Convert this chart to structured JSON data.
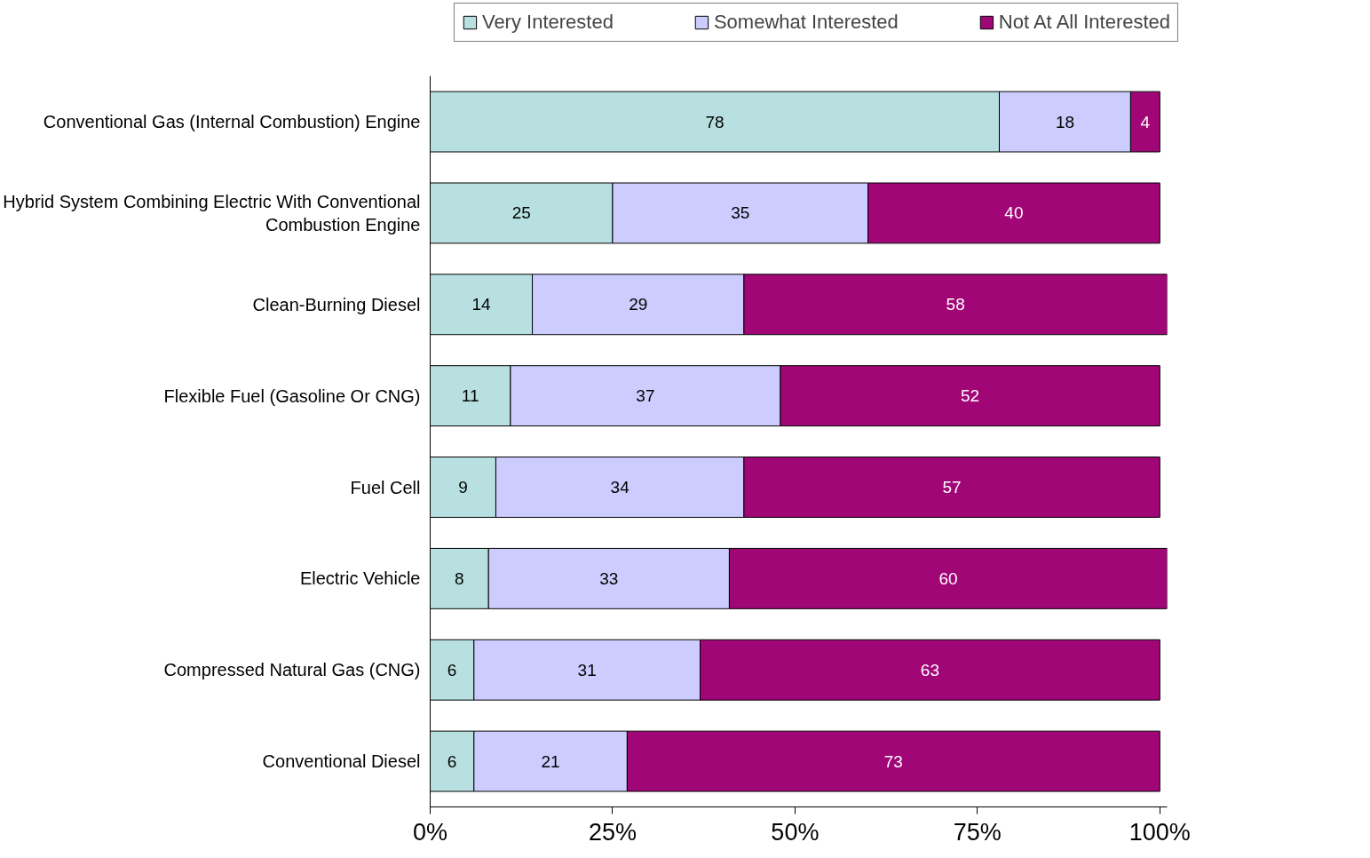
{
  "chart_data": {
    "type": "bar",
    "orientation": "horizontal",
    "stacked": true,
    "categories": [
      "Conventional Gas (Internal Combustion) Engine",
      "Hybrid System Combining Electric With Conventional Combustion Engine",
      "Clean-Burning Diesel",
      "Flexible Fuel (Gasoline Or CNG)",
      "Fuel Cell",
      "Electric Vehicle",
      "Compressed Natural Gas (CNG)",
      "Conventional Diesel"
    ],
    "series": [
      {
        "name": "Very Interested",
        "color": "#b8e0e0",
        "values": [
          78,
          25,
          14,
          11,
          9,
          8,
          6,
          6
        ]
      },
      {
        "name": "Somewhat Interested",
        "color": "#ccccff",
        "values": [
          18,
          35,
          29,
          37,
          34,
          33,
          31,
          21
        ]
      },
      {
        "name": "Not At All Interested",
        "color": "#a10677",
        "values": [
          4,
          40,
          58,
          52,
          57,
          60,
          63,
          73
        ]
      }
    ],
    "xlim": [
      0,
      101
    ],
    "xticks": [
      {
        "value": 0,
        "label": "0%"
      },
      {
        "value": 25,
        "label": "25%"
      },
      {
        "value": 50,
        "label": "50%"
      },
      {
        "value": 75,
        "label": "75%"
      },
      {
        "value": 100,
        "label": "100%"
      }
    ],
    "data_labels": true,
    "grid": false,
    "legend": "top"
  }
}
